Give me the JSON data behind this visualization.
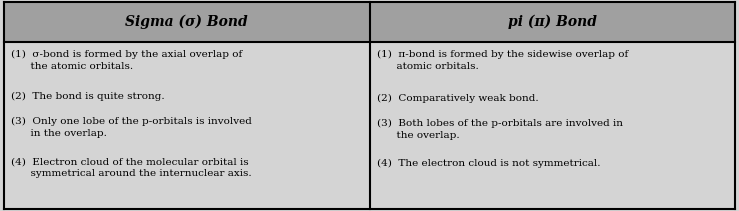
{
  "header_left": "Sigma (σ) Bond",
  "header_right": "pi (π) Bond",
  "header_bg": "#a0a0a0",
  "header_text_color": "#000000",
  "body_bg": "#d4d4d4",
  "border_color": "#000000",
  "left_items": [
    "(1)  σ-bond is formed by the axial overlap of\n      the atomic orbitals.",
    "(2)  The bond is quite strong.",
    "(3)  Only one lobe of the p-orbitals is involved\n      in the overlap.",
    "(4)  Electron cloud of the molecular orbital is\n      symmetrical around the internuclear axis."
  ],
  "right_items": [
    "(1)  π-bond is formed by the sidewise overlap of\n      atomic orbitals.",
    "(2)  Comparatively weak bond.",
    "(3)  Both lobes of the p-orbitals are involved in\n      the overlap.",
    "(4)  The electron cloud is not symmetrical."
  ],
  "figsize": [
    7.39,
    2.11
  ],
  "dpi": 100
}
